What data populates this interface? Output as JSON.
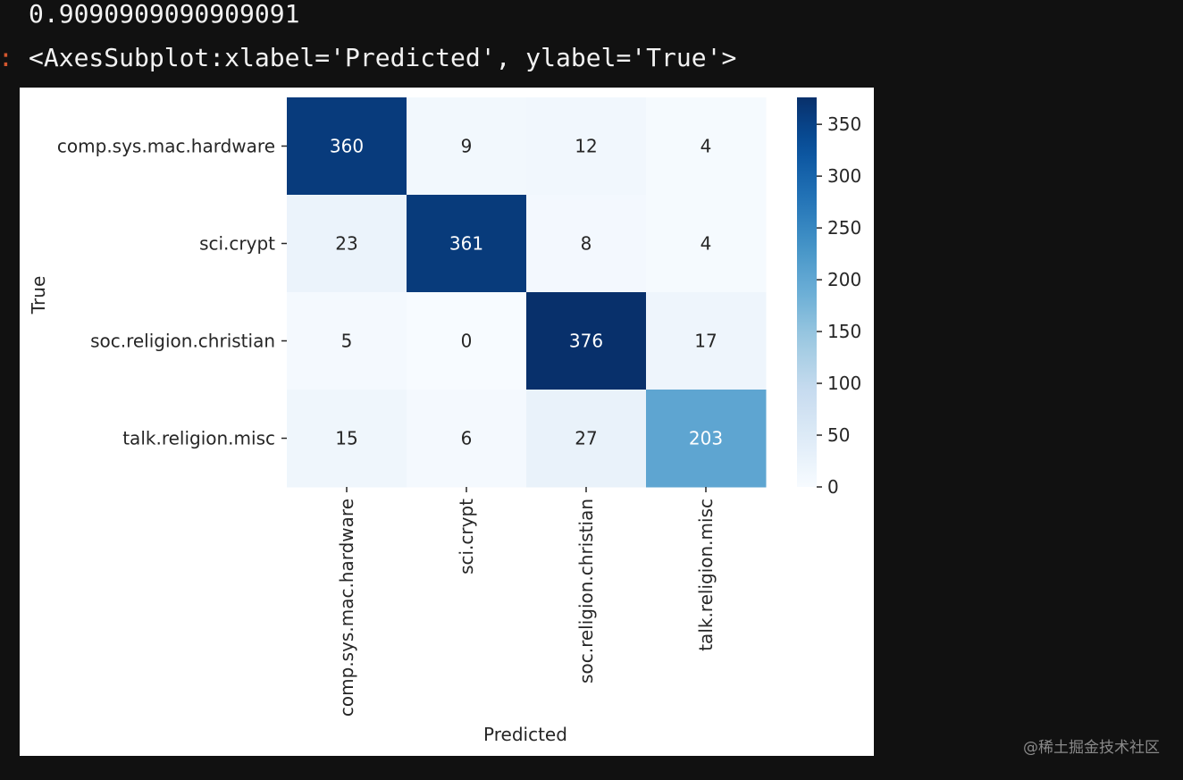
{
  "output": {
    "accuracy_text": "0.9090909090909091",
    "prompt_marker": ":",
    "repr_text": "<AxesSubplot:xlabel='Predicted', ylabel='True'>"
  },
  "chart_data": {
    "type": "heatmap",
    "title": "",
    "xlabel": "Predicted",
    "ylabel": "True",
    "x_categories": [
      "comp.sys.mac.hardware",
      "sci.crypt",
      "soc.religion.christian",
      "talk.religion.misc"
    ],
    "y_categories": [
      "comp.sys.mac.hardware",
      "sci.crypt",
      "soc.religion.christian",
      "talk.religion.misc"
    ],
    "values": [
      [
        360,
        9,
        12,
        4
      ],
      [
        23,
        361,
        8,
        4
      ],
      [
        5,
        0,
        376,
        17
      ],
      [
        15,
        6,
        27,
        203
      ]
    ],
    "colormap": "Blues",
    "vmin": 0,
    "vmax": 376,
    "colorbar_ticks": [
      "0",
      "50",
      "100",
      "150",
      "200",
      "250",
      "300",
      "350"
    ],
    "annotations": true
  },
  "watermark": "@稀土掘金技术社区"
}
